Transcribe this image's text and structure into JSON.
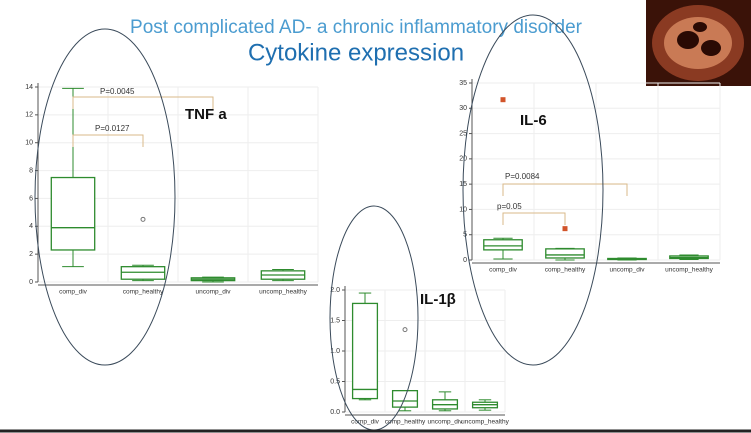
{
  "title": "Post complicated AD- a chronic inflammatory disorder",
  "subtitle": "Cytokine expression",
  "chart_data": [
    {
      "type": "box",
      "label": "TNF a",
      "color": "#2e8b2e",
      "grid": true,
      "categories": [
        "comp_div",
        "comp_healthy",
        "uncomp_div",
        "uncomp_healthy"
      ],
      "boxes": [
        {
          "min": 1.1,
          "q1": 2.3,
          "median": 3.9,
          "q3": 7.5,
          "max": 13.9,
          "outliers": []
        },
        {
          "min": 0.1,
          "q1": 0.2,
          "median": 0.7,
          "q3": 1.1,
          "max": 1.2,
          "outliers": [
            4.5
          ]
        },
        {
          "min": 0,
          "q1": 0.1,
          "median": 0.2,
          "q3": 0.3,
          "max": 0.35,
          "outliers": []
        },
        {
          "min": 0.1,
          "q1": 0.2,
          "median": 0.5,
          "q3": 0.8,
          "max": 0.9,
          "outliers": []
        }
      ],
      "annotations": [
        "P=0.0045",
        "P=0.0127"
      ],
      "ylim": [
        0,
        14
      ],
      "yticks": [
        0,
        2,
        4,
        6,
        8,
        10,
        12,
        14
      ]
    },
    {
      "type": "box",
      "label": "IL-6",
      "color": "#2e8b2e",
      "outlier_color": "#d2542a",
      "grid": true,
      "categories": [
        "comp_div",
        "comp_healthy",
        "uncomp_div",
        "uncomp_healthy"
      ],
      "boxes": [
        {
          "min": 0.2,
          "q1": 2,
          "median": 2.8,
          "q3": 4,
          "max": 4.3,
          "outliers": [
            31.7
          ]
        },
        {
          "min": 0,
          "q1": 0.4,
          "median": 1,
          "q3": 2.2,
          "max": 2.3,
          "outliers": [
            6.2
          ]
        },
        {
          "min": 0,
          "q1": 0.1,
          "median": 0.2,
          "q3": 0.3,
          "max": 0.4,
          "outliers": []
        },
        {
          "min": 0.1,
          "q1": 0.3,
          "median": 0.5,
          "q3": 0.8,
          "max": 1.0,
          "outliers": []
        }
      ],
      "annotations": [
        "P=0.0084",
        "p=0.05"
      ],
      "ylim": [
        0,
        35
      ],
      "yticks": [
        0,
        5,
        10,
        15,
        20,
        25,
        30,
        35
      ]
    },
    {
      "type": "box",
      "label": "IL-1β",
      "color": "#2e8b2e",
      "grid": true,
      "categories": [
        "comp_div",
        "comp_healthy",
        "uncomp_div",
        "uncomp_healthy"
      ],
      "boxes": [
        {
          "min": 0.2,
          "q1": 0.22,
          "median": 0.37,
          "q3": 1.78,
          "max": 1.95,
          "outliers": []
        },
        {
          "min": 0.02,
          "q1": 0.08,
          "median": 0.18,
          "q3": 0.35,
          "max": 0.35,
          "outliers": [
            1.35
          ]
        },
        {
          "min": 0.02,
          "q1": 0.05,
          "median": 0.12,
          "q3": 0.2,
          "max": 0.33,
          "outliers": []
        },
        {
          "min": 0.03,
          "q1": 0.07,
          "median": 0.12,
          "q3": 0.16,
          "max": 0.2,
          "outliers": []
        }
      ],
      "annotations": [],
      "ylim": [
        0,
        2
      ],
      "yticks": [
        {
          "value": 0,
          "label": "0.0"
        },
        {
          "value": 0.5,
          "label": "0.5"
        },
        {
          "value": 1,
          "label": "1.0"
        },
        {
          "value": 1.5,
          "label": "1.5"
        },
        {
          "value": 2,
          "label": "2.0"
        }
      ]
    }
  ]
}
